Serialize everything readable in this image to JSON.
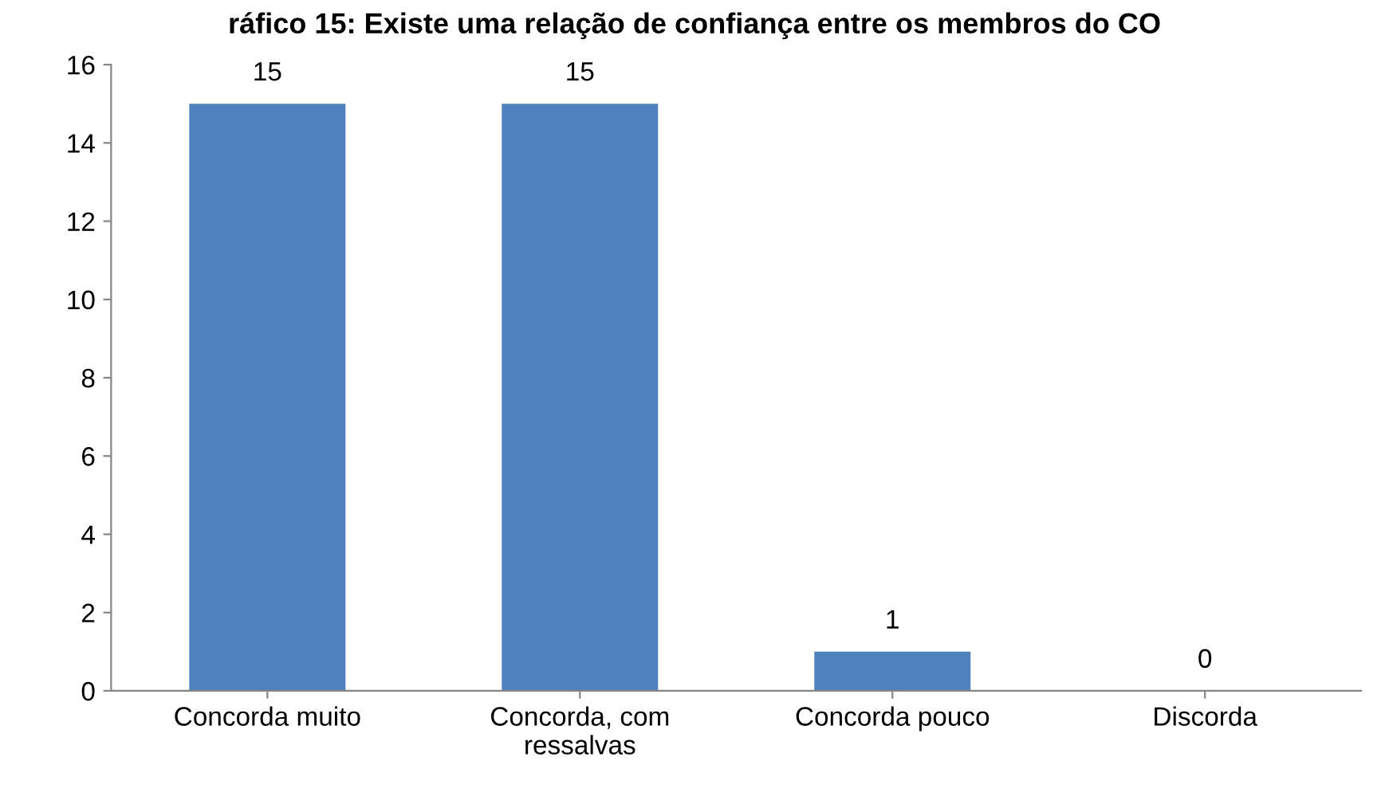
{
  "chart_data": {
    "type": "bar",
    "title": "ráfico 15: Existe uma relação de confiança entre os membros do CO",
    "categories": [
      "Concorda muito",
      "Concorda, com\nressalvas",
      "Concorda pouco",
      "Discorda"
    ],
    "values": [
      15,
      15,
      1,
      0
    ],
    "color": "#4f81bd",
    "ylim": [
      0,
      16
    ],
    "yticks": [
      0,
      2,
      4,
      6,
      8,
      10,
      12,
      14,
      16
    ],
    "grid": false,
    "data_labels": true
  }
}
